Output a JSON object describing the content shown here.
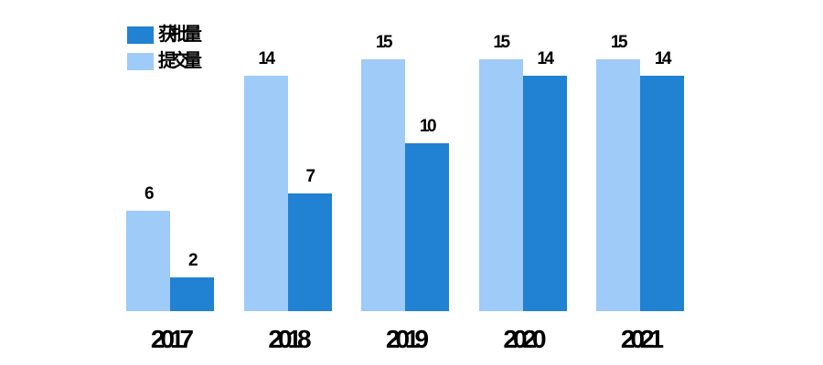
{
  "chart_data": {
    "type": "bar",
    "title": "",
    "categories": [
      "2017",
      "2018",
      "2019",
      "2020",
      "2021"
    ],
    "series": [
      {
        "name": "获批量",
        "color": "#2181d3",
        "slot": "right",
        "values": [
          2,
          7,
          10,
          14,
          14
        ]
      },
      {
        "name": "提交量",
        "color": "#9ecbf8",
        "slot": "left",
        "values": [
          6,
          14,
          15,
          15,
          15
        ]
      }
    ],
    "value_labels_shown": true,
    "legend_position": "top-left",
    "xlabel": "",
    "ylabel": "",
    "y_axis_visible": false,
    "x_axis_line_visible": false,
    "gridlines": false,
    "ylim": [
      0,
      15.5
    ]
  },
  "colors": {
    "background": "#ffffff",
    "text": "#000000",
    "series_dark": "#2181d3",
    "series_light": "#9ecbf8"
  }
}
